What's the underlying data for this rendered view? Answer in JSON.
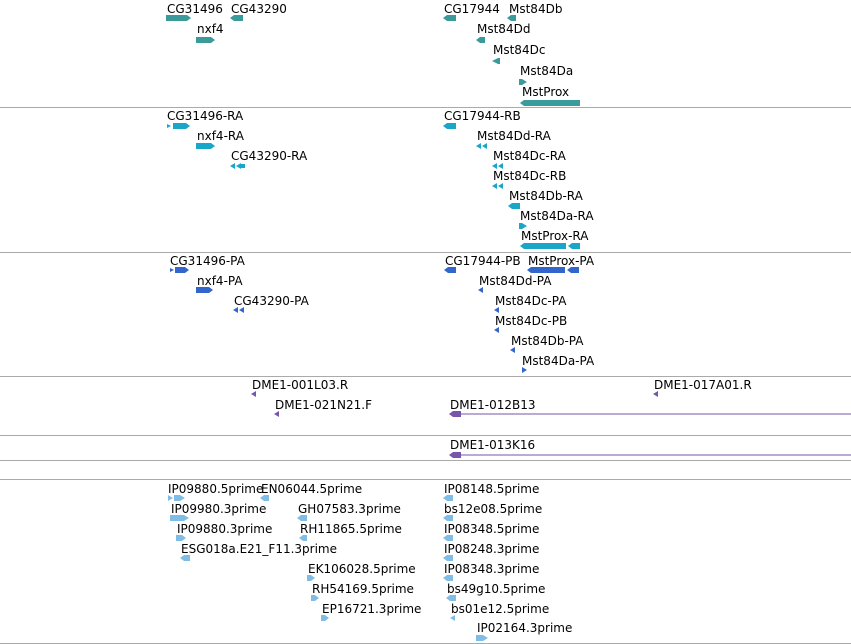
{
  "palette": {
    "gene": "#3b9a9a",
    "transcript": "#1aa6c8",
    "protein": "#3366cc",
    "clone": "#7755aa",
    "est": "#80bde6",
    "separator": "#aaaaaa"
  },
  "tracks": {
    "genes": {
      "features": [
        {
          "label": "CG31496",
          "strand": "+"
        },
        {
          "label": "CG43290",
          "strand": "-"
        },
        {
          "label": "nxf4",
          "strand": "+"
        },
        {
          "label": "CG17944",
          "strand": "-"
        },
        {
          "label": "Mst84Db",
          "strand": "-"
        },
        {
          "label": "Mst84Dd",
          "strand": "-"
        },
        {
          "label": "Mst84Dc",
          "strand": "-"
        },
        {
          "label": "Mst84Da",
          "strand": "+"
        },
        {
          "label": "MstProx",
          "strand": "-"
        }
      ]
    },
    "transcripts": {
      "features": [
        {
          "label": "CG31496-RA",
          "strand": "+"
        },
        {
          "label": "nxf4-RA",
          "strand": "+"
        },
        {
          "label": "CG43290-RA",
          "strand": "-"
        },
        {
          "label": "CG17944-RB",
          "strand": "-"
        },
        {
          "label": "Mst84Dd-RA",
          "strand": "-"
        },
        {
          "label": "Mst84Dc-RA",
          "strand": "-"
        },
        {
          "label": "Mst84Dc-RB",
          "strand": "-"
        },
        {
          "label": "Mst84Db-RA",
          "strand": "-"
        },
        {
          "label": "Mst84Da-RA",
          "strand": "+"
        },
        {
          "label": "MstProx-RA",
          "strand": "-"
        }
      ]
    },
    "proteins": {
      "features": [
        {
          "label": "CG31496-PA",
          "strand": "+"
        },
        {
          "label": "nxf4-PA",
          "strand": "+"
        },
        {
          "label": "CG43290-PA",
          "strand": "-"
        },
        {
          "label": "CG17944-PB",
          "strand": "-"
        },
        {
          "label": "MstProx-PA",
          "strand": "-"
        },
        {
          "label": "Mst84Dd-PA",
          "strand": "-"
        },
        {
          "label": "Mst84Dc-PA",
          "strand": "-"
        },
        {
          "label": "Mst84Dc-PB",
          "strand": "-"
        },
        {
          "label": "Mst84Db-PA",
          "strand": "-"
        },
        {
          "label": "Mst84Da-PA",
          "strand": "+"
        }
      ]
    },
    "clones": {
      "features": [
        {
          "label": "DME1-001L03.R",
          "strand": "-"
        },
        {
          "label": "DME1-017A01.R",
          "strand": "-"
        },
        {
          "label": "DME1-021N21.F",
          "strand": "-"
        },
        {
          "label": "DME1-012B13",
          "strand": "-"
        }
      ]
    },
    "clones2": {
      "features": [
        {
          "label": "DME1-013K16",
          "strand": "-"
        }
      ]
    },
    "ests": {
      "features": [
        {
          "label": "IP09880.5prime",
          "strand": "+"
        },
        {
          "label": "EN06044.5prime",
          "strand": "-"
        },
        {
          "label": "IP08148.5prime",
          "strand": "-"
        },
        {
          "label": "IP09980.3prime",
          "strand": "+"
        },
        {
          "label": "GH07583.3prime",
          "strand": "-"
        },
        {
          "label": "bs12e08.5prime",
          "strand": "-"
        },
        {
          "label": "IP09880.3prime",
          "strand": "+"
        },
        {
          "label": "RH11865.5prime",
          "strand": "-"
        },
        {
          "label": "IP08348.5prime",
          "strand": "-"
        },
        {
          "label": "ESG018a.E21_F11.3prime",
          "strand": "-"
        },
        {
          "label": "IP08248.3prime",
          "strand": "-"
        },
        {
          "label": "EK106028.5prime",
          "strand": "+"
        },
        {
          "label": "IP08348.3prime",
          "strand": "-"
        },
        {
          "label": "RH54169.5prime",
          "strand": "+"
        },
        {
          "label": "bs49g10.5prime",
          "strand": "-"
        },
        {
          "label": "EP16721.3prime",
          "strand": "+"
        },
        {
          "label": "bs01e12.5prime",
          "strand": "-"
        },
        {
          "label": "IP02164.3prime",
          "strand": "+"
        }
      ]
    }
  }
}
